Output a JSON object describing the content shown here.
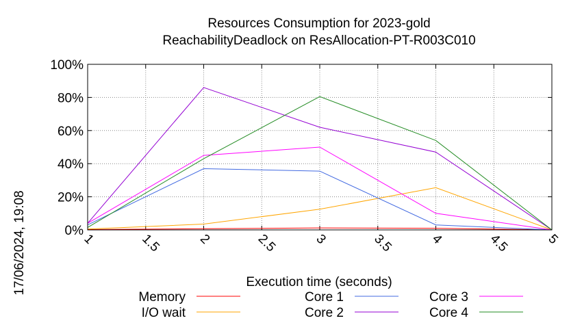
{
  "chart_data": {
    "type": "line",
    "title": "Resources Consumption for 2023-gold",
    "subtitle": "ReachabilityDeadlock on ResAllocation-PT-R003C010",
    "xlabel": "Execution time (seconds)",
    "ylabel": "",
    "xlim": [
      1,
      5
    ],
    "ylim": [
      0,
      100
    ],
    "x_ticks": [
      "1",
      "1.5",
      "2",
      "2.5",
      "3",
      "3.5",
      "4",
      "4.5",
      "5"
    ],
    "y_ticks": [
      "0%",
      "20%",
      "40%",
      "60%",
      "80%",
      "100%"
    ],
    "grid": true,
    "legend_position": "bottom",
    "timestamp": "17/06/2024, 19:08",
    "series": [
      {
        "name": "Memory",
        "color": "#ff0000",
        "x": [
          1,
          2,
          3,
          4,
          5
        ],
        "values": [
          0.2,
          0.7,
          1.2,
          1.0,
          0
        ]
      },
      {
        "name": "I/O wait",
        "color": "#ffa500",
        "x": [
          1,
          2,
          3,
          4,
          5
        ],
        "values": [
          0.5,
          3.5,
          12.5,
          25.5,
          0
        ]
      },
      {
        "name": "Core 1",
        "color": "#4169e1",
        "x": [
          1,
          2,
          3,
          4,
          5
        ],
        "values": [
          3,
          37,
          35.5,
          3,
          0
        ]
      },
      {
        "name": "Core 2",
        "color": "#9400d3",
        "x": [
          1,
          2,
          3,
          4,
          5
        ],
        "values": [
          4,
          86,
          62,
          47,
          0
        ]
      },
      {
        "name": "Core 3",
        "color": "#ff00ff",
        "x": [
          1,
          2,
          3,
          4,
          5
        ],
        "values": [
          4,
          45,
          50,
          10,
          0
        ]
      },
      {
        "name": "Core 4",
        "color": "#228b22",
        "x": [
          1,
          2,
          3,
          4,
          5
        ],
        "values": [
          1.5,
          43,
          80.5,
          54,
          0
        ]
      }
    ]
  }
}
